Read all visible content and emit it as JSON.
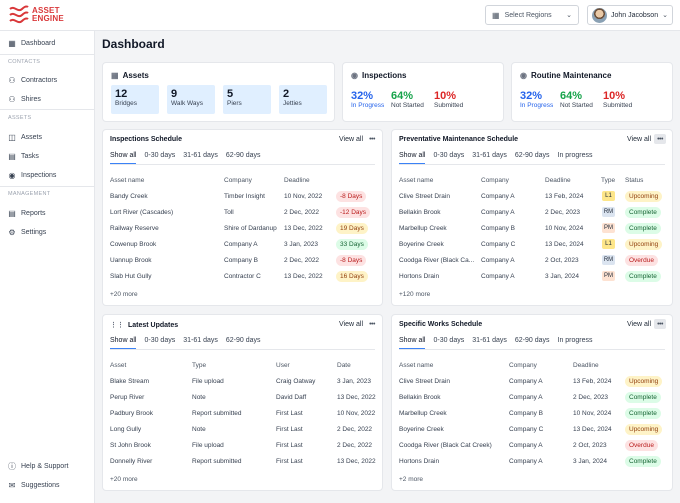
{
  "app": {
    "logo_line1": "ASSET",
    "logo_line2": "ENGINE"
  },
  "header": {
    "region_placeholder": "Select Regions",
    "user_name": "John Jacobson"
  },
  "sidebar": {
    "dashboard": "Dashboard",
    "section_contacts": "CONTACTS",
    "contractors": "Contractors",
    "shires": "Shires",
    "section_assets": "ASSETS",
    "assets": "Assets",
    "tasks": "Tasks",
    "inspections": "Inspections",
    "section_management": "MANAGEMENT",
    "reports": "Reports",
    "settings": "Settings",
    "help": "Help & Support",
    "suggestions": "Suggestions"
  },
  "page": {
    "title": "Dashboard"
  },
  "assets_card": {
    "title": "Assets",
    "stats": [
      {
        "num": "12",
        "label": "Bridges"
      },
      {
        "num": "9",
        "label": "Walk Ways"
      },
      {
        "num": "5",
        "label": "Piers"
      },
      {
        "num": "2",
        "label": "Jetties"
      }
    ]
  },
  "inspections_card": {
    "title": "Inspections",
    "stats": [
      {
        "value": "32%",
        "label": "In Progress"
      },
      {
        "value": "64%",
        "label": "Not Started"
      },
      {
        "value": "10%",
        "label": "Submitted"
      }
    ]
  },
  "maintenance_card": {
    "title": "Routine Maintenance",
    "stats": [
      {
        "value": "32%",
        "label": "In Progress"
      },
      {
        "value": "64%",
        "label": "Not Started"
      },
      {
        "value": "10%",
        "label": "Submitted"
      }
    ]
  },
  "inspections_schedule": {
    "title": "Inspections Schedule",
    "view_all": "View all",
    "tabs": [
      "Show all",
      "0-30 days",
      "31-61 days",
      "62-90 days"
    ],
    "headers": [
      "Asset name",
      "Company",
      "Deadline"
    ],
    "rows": [
      {
        "asset": "Bandy Creek",
        "company": "Timber Insight",
        "deadline": "10 Nov, 2022",
        "days": "-8 Days"
      },
      {
        "asset": "Lort River (Cascades)",
        "company": "Toll",
        "deadline": "2 Dec, 2022",
        "days": "-12 Days"
      },
      {
        "asset": "Railway Reserve",
        "company": "Shire of Dardanup",
        "deadline": "13 Dec, 2022",
        "days": "19 Days"
      },
      {
        "asset": "Cowenup Brook",
        "company": "Company A",
        "deadline": "3 Jan, 2023",
        "days": "33 Days"
      },
      {
        "asset": "Uannup Brook",
        "company": "Company B",
        "deadline": "2 Dec, 2022",
        "days": "-8 Days"
      },
      {
        "asset": "Slab Hut Gully",
        "company": "Contractor C",
        "deadline": "13 Dec, 2022",
        "days": "16 Days"
      }
    ],
    "more": "+20 more"
  },
  "preventative_schedule": {
    "title": "Preventative Maintenance Schedule",
    "view_all": "View all",
    "tabs": [
      "Show all",
      "0-30 days",
      "31-61 days",
      "62-90 days",
      "In progress"
    ],
    "headers": [
      "Asset name",
      "Company",
      "Deadline",
      "Type",
      "Status"
    ],
    "rows": [
      {
        "asset": "Clive Street Drain",
        "company": "Company A",
        "deadline": "13 Feb, 2024",
        "type": "L1",
        "status": "Upcoming"
      },
      {
        "asset": "Bellakin Brook",
        "company": "Company A",
        "deadline": "2 Dec, 2023",
        "type": "RM",
        "status": "Complete"
      },
      {
        "asset": "Marbellup Creek",
        "company": "Company B",
        "deadline": "10 Nov, 2024",
        "type": "PM",
        "status": "Complete"
      },
      {
        "asset": "Boyerine Creek",
        "company": "Company C",
        "deadline": "13 Dec, 2024",
        "type": "L1",
        "status": "Upcoming"
      },
      {
        "asset": "Coodga River (Black Ca...",
        "company": "Company A",
        "deadline": "2 Oct, 2023",
        "type": "RM",
        "status": "Overdue"
      },
      {
        "asset": "Hortons Drain",
        "company": "Company A",
        "deadline": "3 Jan, 2024",
        "type": "PM",
        "status": "Complete"
      }
    ],
    "more": "+120 more"
  },
  "latest_updates": {
    "title": "Latest Updates",
    "view_all": "View all",
    "tabs": [
      "Show all",
      "0-30 days",
      "31-61 days",
      "62-90 days"
    ],
    "headers": [
      "Asset",
      "Type",
      "User",
      "Date"
    ],
    "rows": [
      {
        "asset": "Blake Stream",
        "type": "File upload",
        "user": "Craig Oatway",
        "date": "3 Jan, 2023"
      },
      {
        "asset": "Perup River",
        "type": "Note",
        "user": "David Daff",
        "date": "13 Dec, 2022"
      },
      {
        "asset": "Padbury Brook",
        "type": "Report submitted",
        "user": "First Last",
        "date": "10 Nov, 2022"
      },
      {
        "asset": "Long Gully",
        "type": "Note",
        "user": "First Last",
        "date": "2 Dec, 2022"
      },
      {
        "asset": "St John Brook",
        "type": "File upload",
        "user": "First Last",
        "date": "2 Dec, 2022"
      },
      {
        "asset": "Donnelly River",
        "type": "Report submitted",
        "user": "First Last",
        "date": "13 Dec, 2022"
      }
    ],
    "more": "+20 more"
  },
  "specific_works": {
    "title": "Specific Works Schedule",
    "view_all": "View all",
    "tabs": [
      "Show all",
      "0-30 days",
      "31-61 days",
      "62-90 days",
      "In progress"
    ],
    "headers": [
      "Asset name",
      "Company",
      "Deadline"
    ],
    "rows": [
      {
        "asset": "Clive Street Drain",
        "company": "Company A",
        "deadline": "13 Feb, 2024",
        "status": "Upcoming"
      },
      {
        "asset": "Bellakin Brook",
        "company": "Company A",
        "deadline": "2 Dec, 2023",
        "status": "Complete"
      },
      {
        "asset": "Marbellup Creek",
        "company": "Company B",
        "deadline": "10 Nov, 2024",
        "status": "Complete"
      },
      {
        "asset": "Boyerine Creek",
        "company": "Company C",
        "deadline": "13 Dec, 2024",
        "status": "Upcoming"
      },
      {
        "asset": "Coodga River (Black Cat Creek)",
        "company": "Company A",
        "deadline": "2 Oct, 2023",
        "status": "Overdue"
      },
      {
        "asset": "Hortons Drain",
        "company": "Company A",
        "deadline": "3 Jan, 2024",
        "status": "Complete"
      }
    ],
    "more": "+2 more"
  },
  "colors": {
    "brand": "#d9383a",
    "accent_blue": "#2563eb",
    "green": "#16a34a",
    "red": "#dc2626"
  }
}
